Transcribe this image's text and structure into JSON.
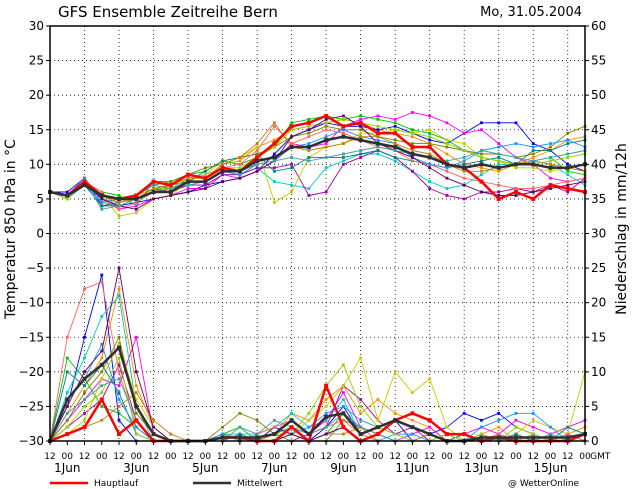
{
  "header": {
    "title": "GFS Ensemble Zeitreihe Bern",
    "date": "Mo, 31.05.2004"
  },
  "footer": {
    "main_run_label": "Hauptlauf",
    "mean_label": "Mittelwert",
    "credit": "@ WetterOnline"
  },
  "colors": {
    "main_run": "#ff0000",
    "mean": "#303030",
    "grid": "#000000",
    "members": [
      "#ff8c00",
      "#00c000",
      "#0000ff",
      "#ff00ff",
      "#00c8c8",
      "#a000a0",
      "#c8c800",
      "#008080",
      "#808000",
      "#ff6464",
      "#2090ff",
      "#90d000",
      "#c08000",
      "#600060",
      "#40a0a0",
      "#8080ff"
    ]
  },
  "chart_data": {
    "type": "line",
    "x_unit": "12h steps from 31 May 2004 12 UTC",
    "ylim_left": [
      -30,
      30
    ],
    "ylim_right": [
      0,
      60
    ],
    "ylabel_left": "Temperatur 850 hPa in °C",
    "ylabel_right": "Niederschlag in mm/12h",
    "left_ticks": [
      "30",
      "25",
      "20",
      "15",
      "10",
      "5",
      "0",
      "−5",
      "−10",
      "−15",
      "−20",
      "−25",
      "−30"
    ],
    "right_ticks": [
      "60",
      "55",
      "50",
      "45",
      "40",
      "35",
      "30",
      "25",
      "20",
      "15",
      "10",
      "5",
      "0"
    ],
    "x_tick_labels": [
      "12",
      "00",
      "12",
      "00",
      "12",
      "00",
      "12",
      "00",
      "12",
      "00",
      "12",
      "00",
      "12",
      "00",
      "12",
      "00",
      "12",
      "00",
      "12",
      "00",
      "12",
      "00",
      "12",
      "00",
      "12",
      "00",
      "12",
      "00",
      "12",
      "00",
      "12",
      "00",
      "GMT"
    ],
    "day_labels": [
      {
        "text": "1Jun",
        "step": 1
      },
      {
        "text": "3Jun",
        "step": 5
      },
      {
        "text": "5Jun",
        "step": 9
      },
      {
        "text": "7Jun",
        "step": 13
      },
      {
        "text": "9Jun",
        "step": 17
      },
      {
        "text": "11Jun",
        "step": 21
      },
      {
        "text": "13Jun",
        "step": 25
      },
      {
        "text": "15Jun",
        "step": 29
      }
    ],
    "grid": true,
    "temperature": {
      "main_run": [
        6,
        5.5,
        7.5,
        5.5,
        5,
        5.5,
        7.5,
        7,
        8.5,
        8,
        9.5,
        9,
        11,
        13,
        15.5,
        16,
        17,
        15.5,
        16,
        14.5,
        14.5,
        12.5,
        12.5,
        10,
        9.5,
        7.5,
        5,
        6,
        5,
        7,
        6.5,
        6
      ],
      "mean": [
        6,
        5.5,
        7,
        5.5,
        5,
        5,
        6,
        6,
        7.5,
        7.5,
        9,
        9,
        10.5,
        11,
        12.5,
        12.5,
        13.5,
        14,
        13.5,
        13,
        12.5,
        11.5,
        11,
        10,
        9.5,
        10,
        9.5,
        10,
        10,
        9.5,
        9.5,
        10
      ],
      "members": [
        [
          6,
          5.5,
          8,
          5,
          4.5,
          5.5,
          6.5,
          6,
          8,
          8,
          10,
          10.5,
          12.5,
          13.5,
          15,
          15.5,
          16,
          16.5,
          16,
          15,
          14.5,
          14,
          13,
          11.5,
          10,
          9.5,
          9,
          10,
          11,
          12,
          13.5,
          14
        ],
        [
          6,
          5.5,
          7.5,
          6,
          5.5,
          4,
          7.5,
          7.5,
          8.5,
          9,
          10.5,
          10,
          11,
          12.5,
          16,
          16.5,
          17,
          16.5,
          17,
          16.5,
          16,
          15,
          14.5,
          13.5,
          12,
          11,
          10.5,
          10,
          10.5,
          11,
          9,
          8.5
        ],
        [
          6,
          6,
          8,
          4,
          4,
          4.5,
          5,
          5.5,
          6,
          7,
          7.5,
          8,
          9,
          11.5,
          14,
          15,
          16,
          15.5,
          15.5,
          15,
          15.5,
          14.5,
          13.5,
          13,
          14.5,
          16,
          16,
          16,
          13,
          12,
          10,
          9
        ],
        [
          6,
          5.5,
          7,
          5,
          3.5,
          4,
          5,
          5.5,
          6.5,
          6.5,
          8.5,
          8,
          9,
          10.5,
          13,
          12.5,
          13,
          15.5,
          16.5,
          17,
          16.5,
          17.5,
          17,
          16,
          14.5,
          15,
          13,
          11,
          10,
          8,
          7.5,
          8
        ],
        [
          6,
          5,
          7,
          4.5,
          4,
          5,
          6,
          6,
          7,
          7,
          8.5,
          8.5,
          9.5,
          7.5,
          7,
          6.5,
          9.5,
          10.5,
          11.5,
          11.5,
          10.5,
          9,
          7.5,
          6.5,
          7,
          8.5,
          10,
          10,
          10.5,
          10,
          8.5,
          7
        ],
        [
          6,
          5.5,
          7.5,
          5.5,
          5,
          5,
          6.5,
          6,
          7,
          7,
          8.5,
          8.5,
          9.5,
          9.5,
          10,
          5.5,
          6,
          10,
          11,
          12,
          11,
          9,
          6.5,
          5.5,
          5,
          6,
          6,
          6.5,
          6,
          7,
          6,
          8
        ],
        [
          6,
          5,
          7.5,
          5.5,
          2.5,
          3,
          5,
          5.5,
          7.5,
          8.5,
          10.5,
          11,
          12.5,
          4.5,
          6,
          11,
          12.5,
          13,
          14.5,
          14.5,
          15,
          14.5,
          15,
          13.5,
          13,
          11,
          10.5,
          9.5,
          9.5,
          9,
          9.5,
          9
        ],
        [
          6,
          5.5,
          7,
          4,
          4.5,
          5,
          6.5,
          7,
          7.5,
          9,
          10.5,
          11,
          11.5,
          9,
          9.5,
          11,
          11,
          11,
          11.5,
          12,
          11,
          10.5,
          10,
          9.5,
          10,
          10.5,
          11,
          10,
          12,
          12,
          13,
          13.5
        ],
        [
          6,
          5.5,
          7.5,
          5.5,
          5,
          5.5,
          7,
          7.5,
          8.5,
          9.5,
          10,
          11,
          11.5,
          12.5,
          14,
          14.5,
          15.5,
          15,
          15,
          14,
          13.5,
          13,
          13,
          12.5,
          12,
          11.5,
          11.5,
          11,
          11.5,
          12.5,
          14.5,
          15.5
        ],
        [
          6,
          5.5,
          7.5,
          6,
          3.5,
          4.5,
          6,
          7,
          8.5,
          8,
          9.5,
          10,
          12,
          15.5,
          13,
          14,
          15,
          14.5,
          13.5,
          12.5,
          12,
          10.5,
          10,
          9,
          8,
          7.5,
          7,
          6.5,
          6.5,
          7,
          7.5,
          8
        ],
        [
          6,
          5.5,
          8,
          4.5,
          5,
          5.5,
          7,
          6.5,
          7.5,
          7.5,
          9,
          8.5,
          10,
          10.5,
          12.5,
          13,
          14,
          15,
          14,
          13.5,
          13,
          11,
          10,
          9.5,
          10.5,
          12,
          12.5,
          13,
          12.5,
          13,
          13.5,
          12.5
        ],
        [
          6,
          5,
          7.5,
          5.5,
          5,
          5,
          6.5,
          6.5,
          8,
          8.5,
          9.5,
          9.5,
          11,
          12.5,
          15,
          15.5,
          16,
          16.5,
          16,
          15.5,
          15,
          14.5,
          14,
          13,
          12,
          11,
          10.5,
          10,
          10,
          10.5,
          11,
          11.5
        ],
        [
          6,
          5.5,
          7,
          5.5,
          4.5,
          5,
          6.5,
          7,
          8,
          8,
          10,
          11,
          13,
          16,
          12.5,
          12,
          12.5,
          13,
          14,
          14,
          13,
          12,
          11.5,
          10,
          9,
          9,
          9.5,
          10,
          10.5,
          10,
          9.5,
          9
        ],
        [
          6,
          5.5,
          7.5,
          5,
          4,
          3.5,
          5,
          5.5,
          6,
          6.5,
          7.5,
          8,
          9,
          10.5,
          14,
          15,
          16.5,
          17,
          15.5,
          13,
          12,
          11,
          9.5,
          8,
          7,
          6,
          5.5,
          5.5,
          6,
          6.5,
          7,
          7.5
        ],
        [
          6,
          5.5,
          7.5,
          3.5,
          4,
          5,
          6,
          6.5,
          7,
          7.5,
          9,
          9,
          10,
          10.5,
          11,
          10.5,
          11,
          11.5,
          12,
          12.5,
          12,
          11.5,
          11,
          10.5,
          11,
          12,
          11.5,
          11,
          10.5,
          11,
          11.5,
          12
        ]
      ]
    },
    "precipitation": {
      "main_run": [
        0,
        1,
        2,
        6,
        1,
        3,
        0,
        0,
        0,
        0,
        0.5,
        0.5,
        0,
        0,
        2,
        0,
        8,
        2,
        0,
        1,
        3,
        4,
        3,
        1,
        1,
        0,
        0.5,
        0,
        0,
        0,
        0,
        1
      ],
      "mean": [
        0,
        6,
        9,
        11,
        13.5,
        5,
        1,
        0,
        0,
        0,
        0.5,
        0.5,
        0.5,
        1,
        3,
        1,
        3.5,
        4,
        1,
        2,
        3,
        2,
        1,
        0,
        0,
        0.5,
        0.5,
        0.5,
        0.5,
        0.5,
        0.5,
        1
      ],
      "members": [
        [
          0,
          4,
          8,
          12,
          22,
          8,
          2,
          0,
          0,
          0,
          1,
          0.5,
          0,
          1,
          4,
          3,
          6,
          8,
          4,
          6,
          4,
          3,
          2,
          0,
          0,
          1,
          2,
          0,
          1,
          0,
          1,
          2
        ],
        [
          0,
          12,
          9,
          5,
          4,
          2,
          0,
          0,
          0,
          0,
          1,
          2,
          0,
          1,
          2,
          0,
          1,
          4,
          2,
          1,
          0,
          0,
          0,
          0,
          0,
          0,
          0,
          0,
          0,
          0,
          0,
          0
        ],
        [
          0,
          5,
          15,
          24,
          3,
          0,
          0,
          0,
          0,
          0,
          0,
          0,
          0,
          2,
          1,
          0,
          2,
          5,
          1,
          2,
          3,
          0,
          1,
          2,
          4,
          3,
          4,
          2,
          1,
          0,
          1,
          0
        ],
        [
          0,
          3,
          6,
          9,
          8,
          15,
          1,
          0,
          0,
          0,
          0,
          0,
          0,
          0,
          2,
          1,
          3,
          7,
          2,
          1,
          0,
          1,
          2,
          0,
          1,
          2,
          1,
          3,
          2,
          1,
          2,
          3
        ],
        [
          0,
          7,
          12,
          18,
          21,
          5,
          0,
          0,
          0,
          0,
          1,
          1,
          1,
          2,
          4,
          2,
          3,
          6,
          1,
          0,
          1,
          0,
          0,
          0,
          0,
          1,
          0,
          1,
          0,
          0,
          0,
          1
        ],
        [
          0,
          2,
          4,
          6,
          11,
          3,
          0,
          0,
          0,
          0,
          0,
          0,
          0,
          0,
          0,
          1,
          2,
          8,
          6,
          3,
          1,
          2,
          0,
          1,
          0,
          0,
          1,
          0,
          0,
          0,
          0,
          0
        ],
        [
          0,
          1,
          3,
          9,
          14,
          6,
          2,
          0,
          0,
          0,
          0,
          0,
          0,
          1,
          1,
          3,
          5,
          8,
          12,
          3,
          10,
          7,
          9,
          2,
          0,
          1,
          0,
          1,
          3,
          2,
          1,
          10
        ],
        [
          0,
          10,
          8,
          11,
          7,
          1,
          0,
          0,
          0,
          0,
          0,
          1,
          0,
          0,
          2,
          0,
          1,
          2,
          0,
          0,
          0,
          0,
          0,
          0,
          1,
          0,
          0,
          1,
          0,
          0,
          2,
          1
        ],
        [
          0,
          3,
          7,
          10,
          15,
          4,
          1,
          0,
          0,
          0,
          2,
          4,
          3,
          1,
          0,
          0,
          0,
          3,
          2,
          1,
          0,
          0,
          0,
          0,
          0,
          0,
          0,
          0,
          0,
          0,
          0,
          0
        ],
        [
          0,
          15,
          22,
          23,
          10,
          2,
          0,
          0,
          0,
          0,
          0,
          0,
          1,
          2,
          3,
          1,
          2,
          3,
          1,
          0,
          0,
          0,
          0,
          1,
          0,
          0,
          1,
          0,
          0,
          0,
          1,
          0
        ],
        [
          0,
          6,
          9,
          14,
          6,
          2,
          0,
          0,
          0,
          0,
          1,
          0,
          0,
          0,
          1,
          2,
          4,
          5,
          3,
          2,
          1,
          1,
          0,
          0,
          0,
          2,
          3,
          4,
          4,
          2,
          0,
          0
        ],
        [
          0,
          2,
          5,
          7,
          12,
          1,
          0,
          0,
          0,
          0,
          0,
          0,
          0,
          1,
          1,
          4,
          8,
          11,
          5,
          2,
          1,
          0,
          0,
          1,
          0,
          1,
          0,
          2,
          1,
          0,
          0,
          1
        ],
        [
          0,
          1,
          2,
          3,
          5,
          7,
          3,
          1,
          0,
          0,
          0,
          0,
          0,
          1,
          0,
          0,
          1,
          1,
          2,
          0,
          0,
          0,
          1,
          0,
          0,
          0,
          0,
          0,
          0,
          0,
          0,
          0
        ],
        [
          0,
          5,
          10,
          13,
          25,
          10,
          2,
          0,
          0,
          0,
          0,
          0,
          0,
          0,
          1,
          0,
          1,
          2,
          0,
          0,
          0,
          0,
          0,
          0,
          0,
          0,
          0,
          0,
          0,
          0,
          0,
          0
        ],
        [
          0,
          4,
          6,
          8,
          9,
          3,
          0,
          0,
          0,
          0,
          0,
          2,
          1,
          3,
          2,
          1,
          2,
          4,
          2,
          1,
          0,
          0,
          0,
          0,
          0,
          0,
          0,
          0,
          0,
          1,
          0,
          0
        ]
      ]
    },
    "legend": [
      {
        "label_key": "main_run_label",
        "color": "#ff0000"
      },
      {
        "label_key": "mean_label",
        "color": "#303030"
      }
    ]
  }
}
